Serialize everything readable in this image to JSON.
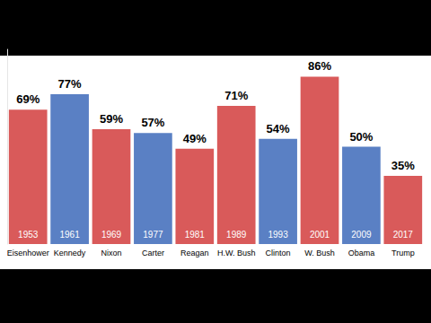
{
  "chart_data": {
    "type": "bar",
    "categories": [
      "Eisenhower",
      "Kennedy",
      "Nixon",
      "Carter",
      "Reagan",
      "H.W. Bush",
      "Clinton",
      "W. Bush",
      "Obama",
      "Trump"
    ],
    "values": [
      69,
      77,
      59,
      57,
      49,
      71,
      54,
      86,
      50,
      35
    ],
    "value_labels": [
      "69%",
      "77%",
      "59%",
      "57%",
      "49%",
      "71%",
      "54%",
      "86%",
      "50%",
      "35%"
    ],
    "years": [
      "1953",
      "1961",
      "1969",
      "1977",
      "1981",
      "1989",
      "1993",
      "2001",
      "2009",
      "2017"
    ],
    "colors": [
      "#d95a5a",
      "#5a80c4",
      "#d95a5a",
      "#5a80c4",
      "#d95a5a",
      "#d95a5a",
      "#5a80c4",
      "#d95a5a",
      "#5a80c4",
      "#d95a5a"
    ],
    "ylim": [
      0,
      100
    ],
    "grid": false,
    "data_labels": true,
    "tick_labels": "x"
  }
}
